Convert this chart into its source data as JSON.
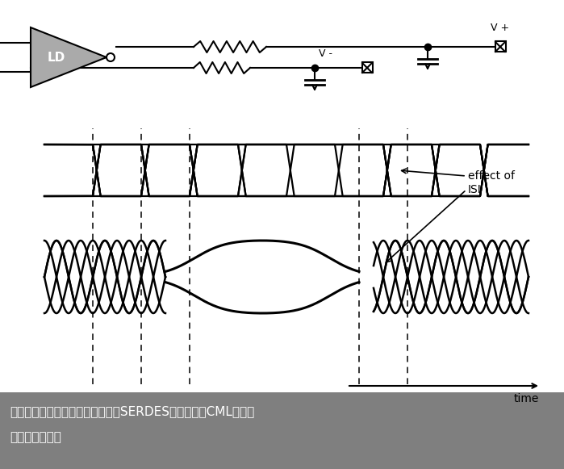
{
  "bg_color": "#ffffff",
  "footer_bg": "#7f7f7f",
  "footer_text_line1": "高速串行总线设计基础（八）揭秘SERDES高速面纱之CML电平标",
  "footer_text_line2": "准与预加重技术",
  "footer_time_label": "time",
  "effect_label_line1": "effect of",
  "effect_label_line2": "ISI",
  "lw": 1.5,
  "lw_sig": 2.0,
  "amp_gray": "#aaaaaa"
}
